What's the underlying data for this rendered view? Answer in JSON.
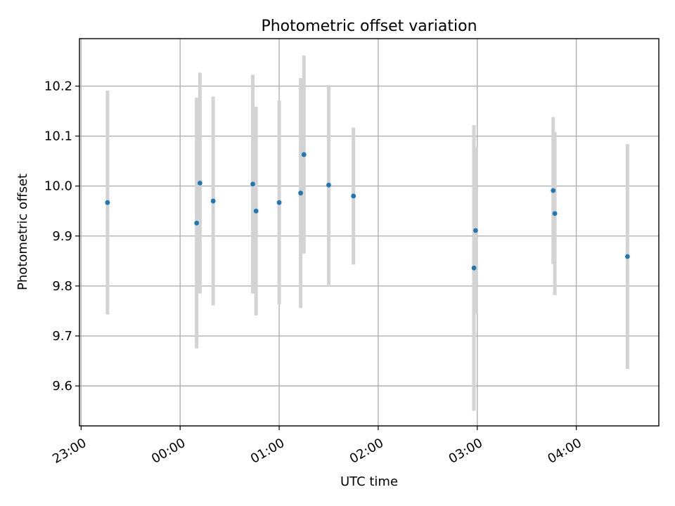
{
  "chart_data": {
    "type": "scatter",
    "title": "Photometric offset variation",
    "xlabel": "UTC time",
    "ylabel": "Photometric offset",
    "x_unit": "UTC time (HH:MM)",
    "xlim": [
      "22:59",
      "04:50"
    ],
    "ylim": [
      9.52,
      10.295
    ],
    "x_ticks": [
      "23:00",
      "00:00",
      "01:00",
      "02:00",
      "03:00",
      "04:00"
    ],
    "y_ticks": [
      9.6,
      9.7,
      9.8,
      9.9,
      10.0,
      10.1,
      10.2
    ],
    "grid": true,
    "legend": "none",
    "colors": {
      "points": "#1f77b4",
      "errorbars": "#d3d3d3",
      "grid": "#b0b0b0"
    },
    "series": [
      {
        "points": [
          {
            "x": "23:16",
            "y": 9.967,
            "error": 0.224
          },
          {
            "x": "00:10",
            "y": 9.926,
            "error": 0.251
          },
          {
            "x": "00:12",
            "y": 10.006,
            "error": 0.221
          },
          {
            "x": "00:20",
            "y": 9.97,
            "error": 0.209
          },
          {
            "x": "00:44",
            "y": 10.004,
            "error": 0.219
          },
          {
            "x": "00:46",
            "y": 9.95,
            "error": 0.209
          },
          {
            "x": "01:00",
            "y": 9.967,
            "error": 0.204
          },
          {
            "x": "01:13",
            "y": 9.986,
            "error": 0.23
          },
          {
            "x": "01:15",
            "y": 10.063,
            "error": 0.198
          },
          {
            "x": "01:30",
            "y": 10.002,
            "error": 0.2
          },
          {
            "x": "01:45",
            "y": 9.98,
            "error": 0.137
          },
          {
            "x": "02:58",
            "y": 9.836,
            "error": 0.286
          },
          {
            "x": "02:59",
            "y": 9.911,
            "error": 0.166
          },
          {
            "x": "03:46",
            "y": 9.991,
            "error": 0.147
          },
          {
            "x": "03:47",
            "y": 9.945,
            "error": 0.163
          },
          {
            "x": "04:31",
            "y": 9.859,
            "error": 0.225
          }
        ]
      }
    ]
  }
}
